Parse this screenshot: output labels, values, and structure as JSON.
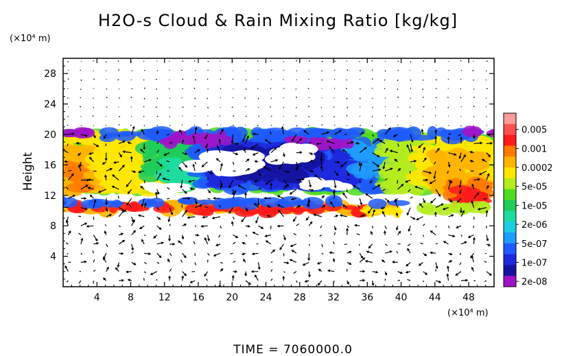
{
  "chart_data": {
    "type": "heatmap",
    "title": "H2O-s Cloud & Rain Mixing Ratio [kg/kg]",
    "ylabel": "Height",
    "y_unit": "(×10⁴ m)",
    "x_unit": "(×10⁴ m)",
    "xlim": [
      0,
      51
    ],
    "ylim": [
      0,
      30
    ],
    "x_ticks": [
      "4",
      "8",
      "12",
      "16",
      "20",
      "24",
      "28",
      "32",
      "36",
      "40",
      "44",
      "48"
    ],
    "y_ticks": [
      "4",
      "8",
      "12",
      "16",
      "20",
      "24",
      "28"
    ],
    "colorbar": {
      "labels": [
        "0.005",
        "0.001",
        "0.0002",
        "5e-05",
        "1e-05",
        "2e-06",
        "5e-07",
        "1e-07",
        "2e-08"
      ],
      "colors": [
        "#ff9a9a",
        "#ff5050",
        "#ff1a1a",
        "#ff7a00",
        "#ffb400",
        "#ffe600",
        "#b4ec1e",
        "#50dc1e",
        "#1ecc5a",
        "#1edca0",
        "#1ecce6",
        "#1e9cff",
        "#1e5aff",
        "#1e28dc",
        "#1414a0",
        "#a014c8"
      ]
    },
    "cloud_regions": [
      {
        "name": "upper cloud layer",
        "x": [
          0,
          51
        ],
        "y": [
          12.5,
          20.3
        ],
        "range": "2e-08 to 0.0002"
      },
      {
        "name": "west core",
        "x": [
          0,
          4
        ],
        "y": [
          12,
          18
        ],
        "range": "0.0002"
      },
      {
        "name": "east core",
        "x": [
          45,
          51
        ],
        "y": [
          10,
          17
        ],
        "range": "0.0002 to 0.001"
      },
      {
        "name": "thin lower layer",
        "x": [
          0,
          40
        ],
        "y": [
          9.5,
          11.2
        ],
        "range": "0.0002 to 0.001"
      }
    ],
    "grid": false,
    "legend": "right",
    "overlay": "wind vectors (arrows)"
  },
  "footer": "TIME = 7060000.0"
}
